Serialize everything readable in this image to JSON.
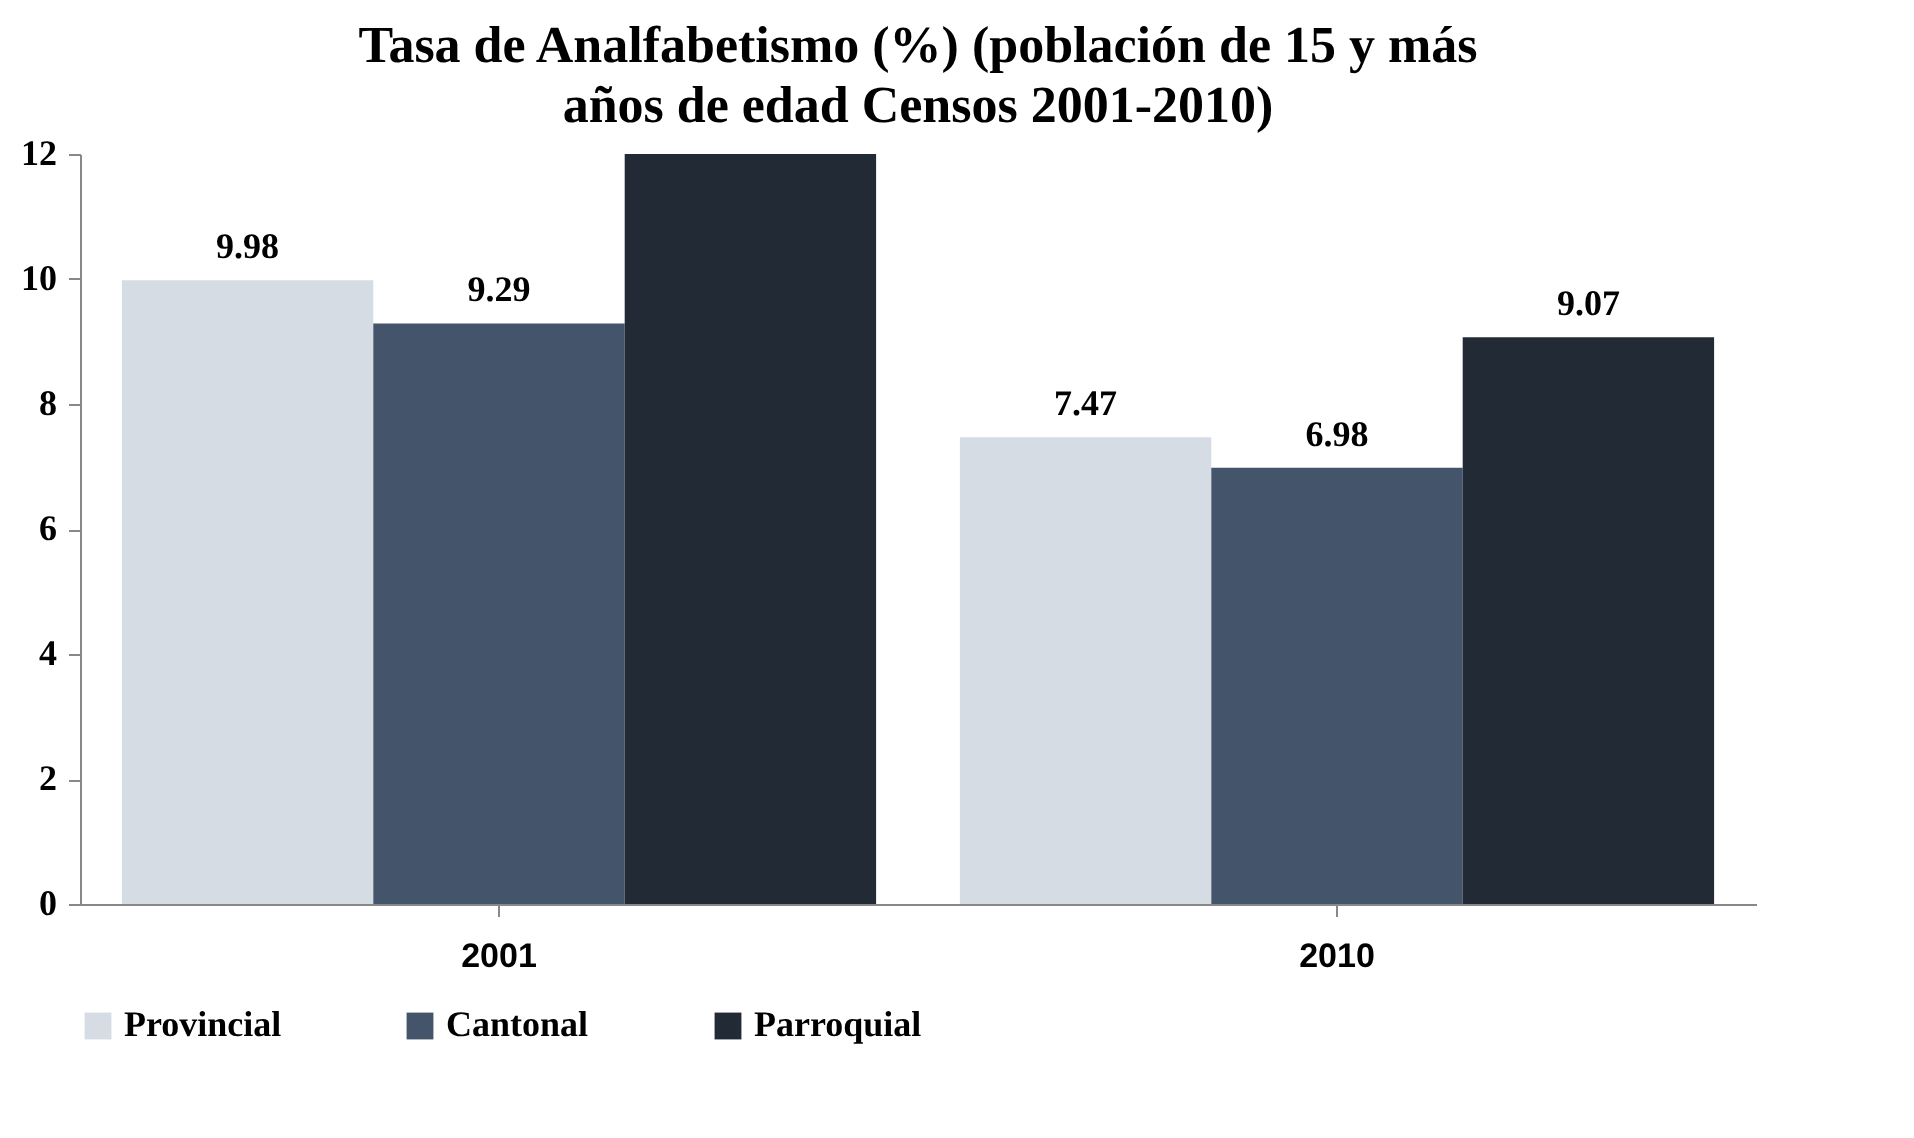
{
  "chart_data": {
    "type": "bar",
    "title": "Tasa de Analfabetismo (%) (población de 15 y más años de edad Censos 2001-2010)",
    "categories": [
      "2001",
      "2010"
    ],
    "series": [
      {
        "name": "Provincial",
        "color": "#d6dce4",
        "values": [
          9.98,
          7.47
        ],
        "value_labels": [
          "9.98",
          "7.47"
        ]
      },
      {
        "name": "Cantonal",
        "color": "#44546a",
        "values": [
          9.29,
          6.98
        ],
        "value_labels": [
          "9.29",
          "6.98"
        ]
      },
      {
        "name": "Parroquial",
        "color": "#222a35",
        "values": [
          12,
          9.07
        ],
        "value_labels": [
          null,
          "9.07"
        ]
      }
    ],
    "ylim": [
      0,
      12
    ],
    "yticks": [
      0,
      2,
      4,
      6,
      8,
      10,
      12
    ],
    "grid": false,
    "legend": "bottom"
  }
}
